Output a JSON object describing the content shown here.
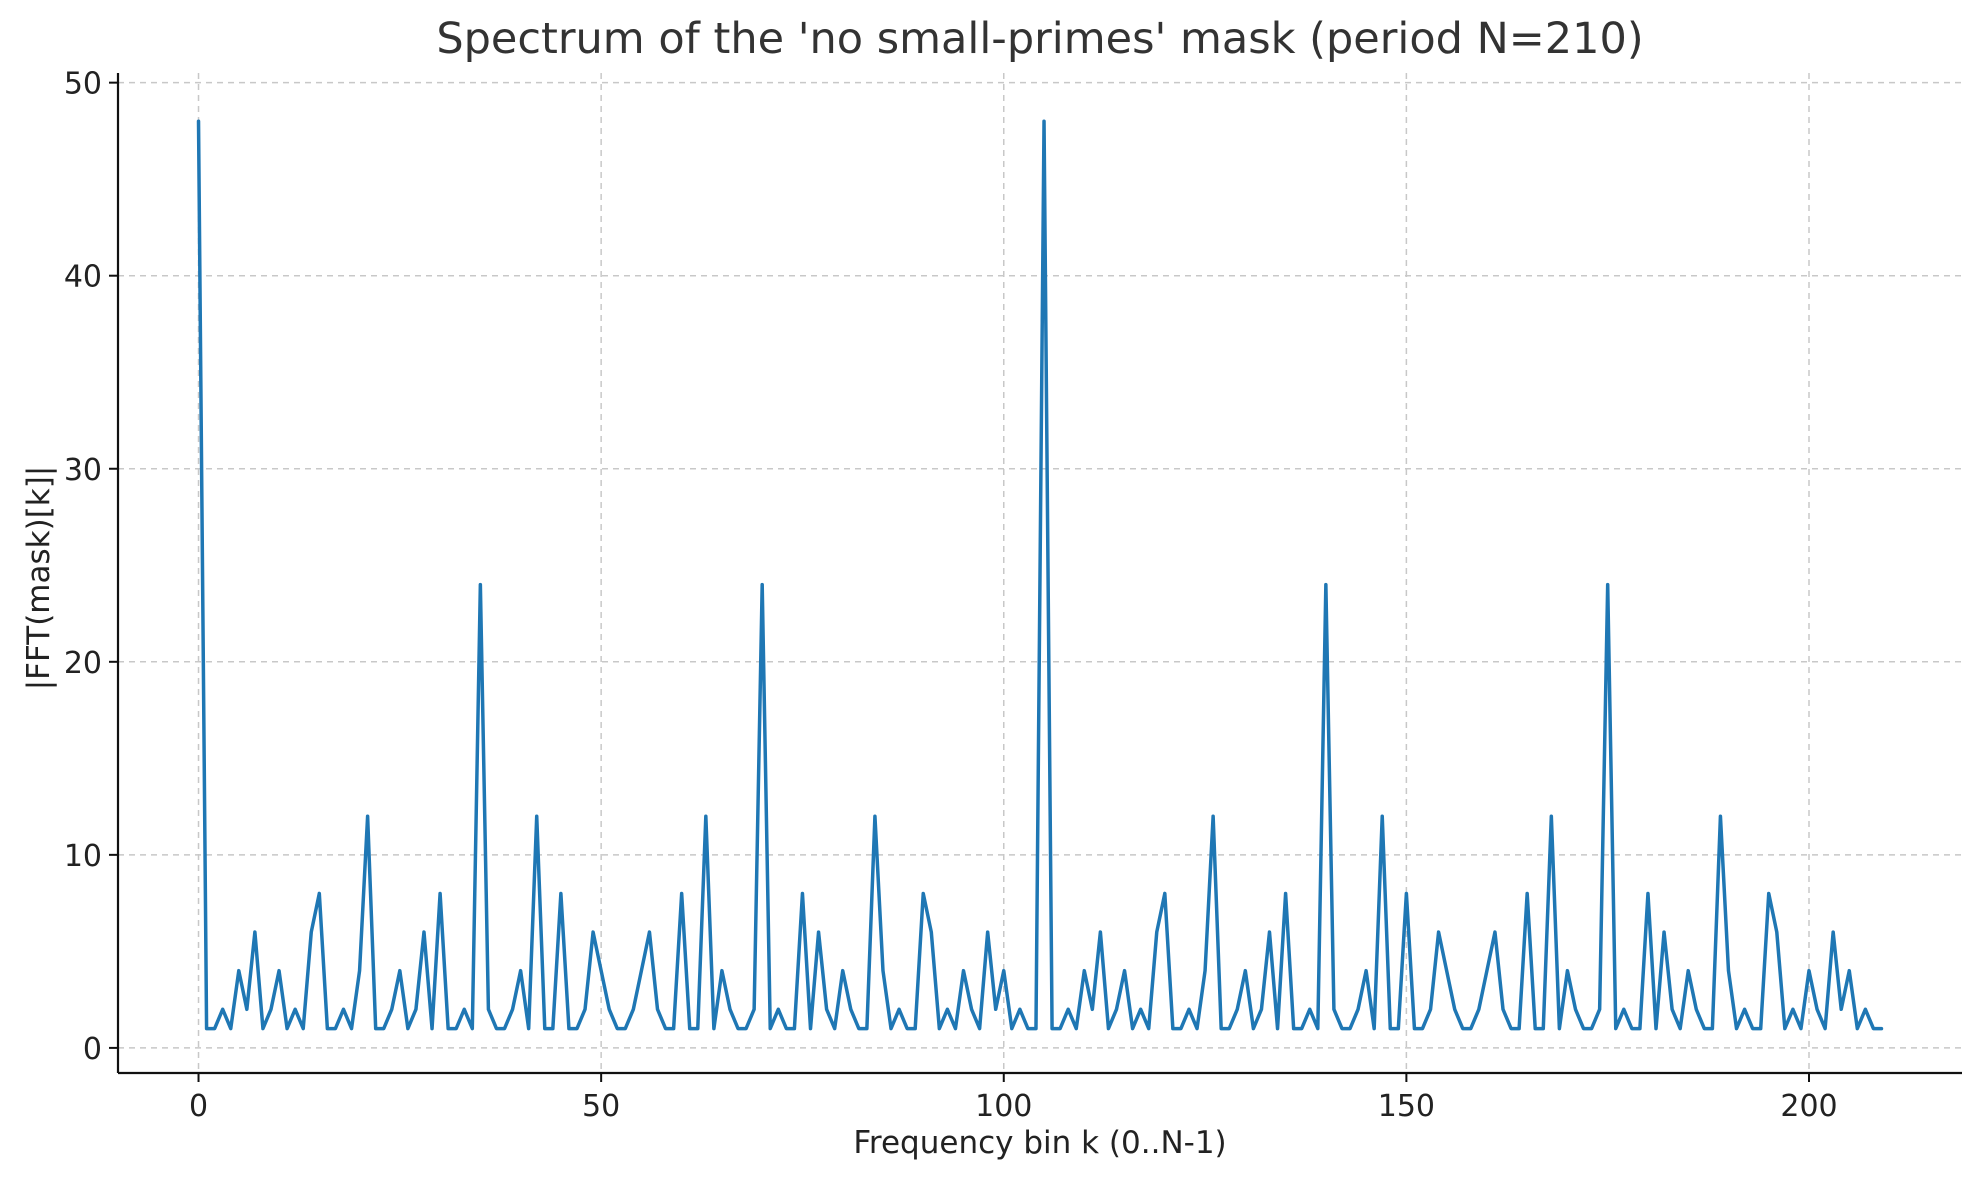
{
  "chart_data": {
    "type": "line",
    "title": "Spectrum of the 'no small-primes' mask (period N=210)",
    "xlabel": "Frequency bin k (0..N-1)",
    "ylabel": "|FFT(mask)[k]|",
    "xlim": [
      -10,
      219
    ],
    "ylim": [
      -1.3,
      50.5
    ],
    "xticks": [
      0,
      50,
      100,
      150,
      200
    ],
    "yticks": [
      0,
      10,
      20,
      30,
      40,
      50
    ],
    "grid": true,
    "series": [
      {
        "color": "#1f77b4",
        "x": [
          0,
          1,
          2,
          3,
          4,
          5,
          6,
          7,
          8,
          9,
          10,
          11,
          12,
          13,
          14,
          15,
          16,
          17,
          18,
          19,
          20,
          21,
          22,
          23,
          24,
          25,
          26,
          27,
          28,
          29,
          30,
          31,
          32,
          33,
          34,
          35,
          36,
          37,
          38,
          39,
          40,
          41,
          42,
          43,
          44,
          45,
          46,
          47,
          48,
          49,
          50,
          51,
          52,
          53,
          54,
          55,
          56,
          57,
          58,
          59,
          60,
          61,
          62,
          63,
          64,
          65,
          66,
          67,
          68,
          69,
          70,
          71,
          72,
          73,
          74,
          75,
          76,
          77,
          78,
          79,
          80,
          81,
          82,
          83,
          84,
          85,
          86,
          87,
          88,
          89,
          90,
          91,
          92,
          93,
          94,
          95,
          96,
          97,
          98,
          99,
          100,
          101,
          102,
          103,
          104,
          105,
          106,
          107,
          108,
          109,
          110,
          111,
          112,
          113,
          114,
          115,
          116,
          117,
          118,
          119,
          120,
          121,
          122,
          123,
          124,
          125,
          126,
          127,
          128,
          129,
          130,
          131,
          132,
          133,
          134,
          135,
          136,
          137,
          138,
          139,
          140,
          141,
          142,
          143,
          144,
          145,
          146,
          147,
          148,
          149,
          150,
          151,
          152,
          153,
          154,
          155,
          156,
          157,
          158,
          159,
          160,
          161,
          162,
          163,
          164,
          165,
          166,
          167,
          168,
          169,
          170,
          171,
          172,
          173,
          174,
          175,
          176,
          177,
          178,
          179,
          180,
          181,
          182,
          183,
          184,
          185,
          186,
          187,
          188,
          189,
          190,
          191,
          192,
          193,
          194,
          195,
          196,
          197,
          198,
          199,
          200,
          201,
          202,
          203,
          204,
          205,
          206,
          207,
          208,
          209
        ],
        "y": [
          48,
          1,
          1,
          2,
          1,
          4,
          2,
          6,
          1,
          2,
          4,
          1,
          2,
          1,
          6,
          8,
          1,
          1,
          2,
          1,
          4,
          12,
          1,
          1,
          2,
          4,
          1,
          2,
          6,
          1,
          8,
          1,
          1,
          2,
          1,
          24,
          2,
          1,
          1,
          2,
          4,
          1,
          12,
          1,
          1,
          8,
          1,
          1,
          2,
          6,
          4,
          2,
          1,
          1,
          2,
          4,
          6,
          2,
          1,
          1,
          8,
          1,
          1,
          12,
          1,
          4,
          2,
          1,
          1,
          2,
          24,
          1,
          2,
          1,
          1,
          8,
          1,
          6,
          2,
          1,
          4,
          2,
          1,
          1,
          12,
          4,
          1,
          2,
          1,
          1,
          8,
          6,
          1,
          2,
          1,
          4,
          2,
          1,
          6,
          2,
          4,
          1,
          2,
          1,
          1,
          48,
          1,
          1,
          2,
          1,
          4,
          2,
          6,
          1,
          2,
          4,
          1,
          2,
          1,
          6,
          8,
          1,
          1,
          2,
          1,
          4,
          12,
          1,
          1,
          2,
          4,
          1,
          2,
          6,
          1,
          8,
          1,
          1,
          2,
          1,
          24,
          2,
          1,
          1,
          2,
          4,
          1,
          12,
          1,
          1,
          8,
          1,
          1,
          2,
          6,
          4,
          2,
          1,
          1,
          2,
          4,
          6,
          2,
          1,
          1,
          8,
          1,
          1,
          12,
          1,
          4,
          2,
          1,
          1,
          2,
          24,
          1,
          2,
          1,
          1,
          8,
          1,
          6,
          2,
          1,
          4,
          2,
          1,
          1,
          12,
          4,
          1,
          2,
          1,
          1,
          8,
          6,
          1,
          2,
          1,
          4,
          2,
          1,
          6,
          2,
          4,
          1,
          2,
          1,
          1
        ]
      }
    ]
  }
}
